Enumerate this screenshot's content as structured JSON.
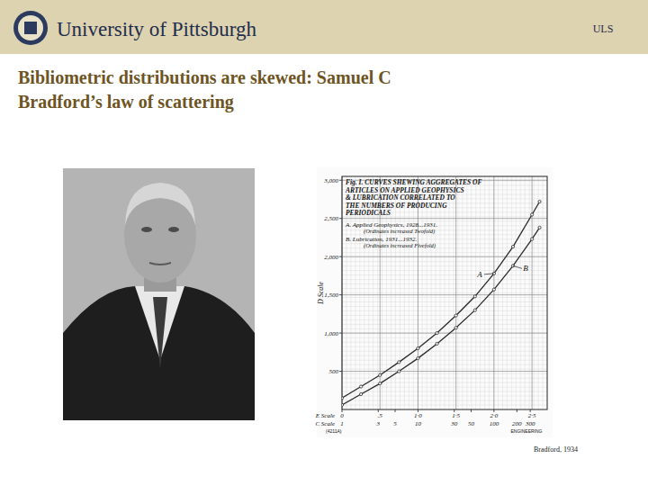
{
  "header": {
    "institution": "University of Pittsburgh",
    "unit": "ULS"
  },
  "title": [
    "Bibliometric distributions are skewed: Samuel C",
    "Bradford’s law of scattering"
  ],
  "caption": "Bradford, 1934",
  "chart_data": {
    "type": "line",
    "title": [
      "Fig. I. CURVES SHEWING AGGREGATES OF",
      "ARTICLES ON APPLIED GEOPHYSICS",
      "& LUBRICATION CORRELATED TO",
      "THE NUMBERS OF PRODUCING",
      "PERIODICALS"
    ],
    "ylabel": "D Scale",
    "xlabel": "E Scale",
    "x2label": "C Scale",
    "x2note": "ENGINEERING",
    "code": "(4211A)",
    "x": [
      0,
      0.25,
      0.5,
      0.75,
      1.0,
      1.25,
      1.5,
      1.75,
      2.0,
      2.25,
      2.5,
      2.6
    ],
    "series": [
      {
        "name": "A. Applied Geophysics, 1928...1931.",
        "note": "(Ordinates increased Twofold)",
        "label": "A",
        "color": "#2a2a2a",
        "marker": "circle",
        "values": [
          150,
          300,
          450,
          620,
          800,
          1000,
          1230,
          1480,
          1780,
          2130,
          2550,
          2720
        ]
      },
      {
        "name": "B. Lubrication, 1931...1932.",
        "note": "(Ordinates increased Fivefold)",
        "label": "B",
        "color": "#2a2a2a",
        "marker": "circle",
        "values": [
          60,
          200,
          340,
          500,
          670,
          860,
          1070,
          1300,
          1570,
          1880,
          2230,
          2380
        ]
      }
    ],
    "xlim": [
      0,
      2.7
    ],
    "xticks": [
      0,
      {
        "value": 0.5,
        "label": ".5"
      },
      {
        "value": 1,
        "label": "1·0"
      },
      {
        "value": 1.5,
        "label": "1·5"
      },
      {
        "value": 2,
        "label": "2·0"
      },
      {
        "value": 2.5,
        "label": "2·5"
      }
    ],
    "x2ticks": [
      {
        "value": 0,
        "label": "1"
      },
      {
        "value": 0.477,
        "label": "3"
      },
      {
        "value": 0.699,
        "label": "5"
      },
      {
        "value": 1,
        "label": "10"
      },
      {
        "value": 1.477,
        "label": "30"
      },
      {
        "value": 1.699,
        "label": "50"
      },
      {
        "value": 2,
        "label": "100"
      },
      {
        "value": 2.301,
        "label": "200"
      },
      {
        "value": 2.477,
        "label": "300"
      }
    ],
    "ylim": [
      0,
      3050
    ],
    "yticks": [
      500,
      {
        "value": 1000,
        "label": "1,000"
      },
      {
        "value": 1500,
        "label": "1,500"
      },
      {
        "value": 2000,
        "label": "2,000"
      },
      {
        "value": 2500,
        "label": "2,500"
      },
      {
        "value": 3000,
        "label": "3,000"
      }
    ],
    "grid": true
  }
}
